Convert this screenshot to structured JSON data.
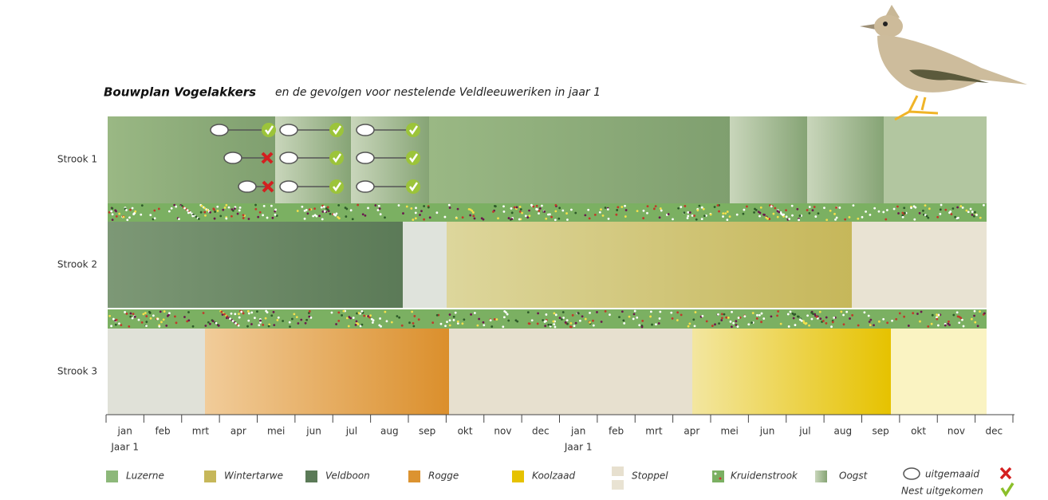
{
  "title": {
    "main": "Bouwplan Vogelakkers",
    "rest": "en de gevolgen voor nestelende Veldleeuweriken in jaar 1"
  },
  "rows": [
    "Strook 1",
    "Strook 2",
    "Strook 3"
  ],
  "months": [
    "jan",
    "feb",
    "mrt",
    "apr",
    "mei",
    "jun",
    "jul",
    "aug",
    "sep",
    "okt",
    "nov",
    "dec",
    "jan",
    "feb",
    "mrt",
    "apr",
    "mei",
    "jun",
    "jul",
    "aug",
    "sep",
    "okt",
    "nov",
    "dec"
  ],
  "year_labels": [
    "Jaar 1",
    "Jaar 1"
  ],
  "legend": [
    "Luzerne",
    "Wintertarwe",
    "Veldboon",
    "Rogge",
    "Koolzaad",
    "Stoppel",
    "Kruidenstrook",
    "Oogst",
    "uitgemaaid",
    "Nest uitgekomen"
  ]
}
